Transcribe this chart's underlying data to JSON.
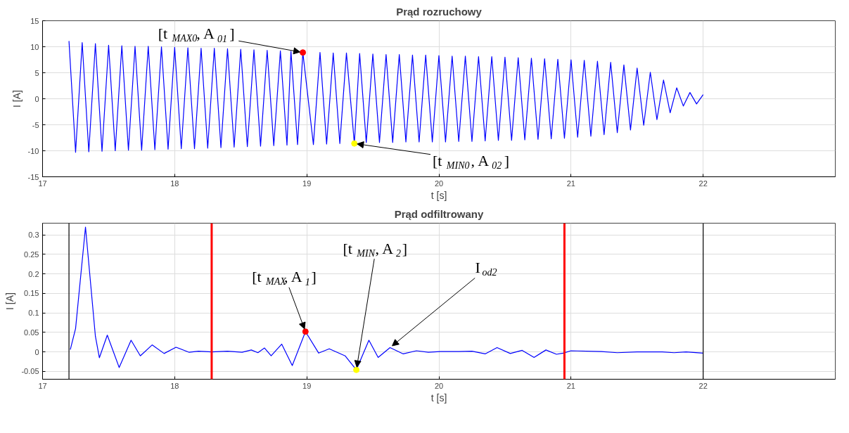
{
  "chart_data": [
    {
      "type": "line",
      "title": "Prąd rozruchowy",
      "xlabel": "t [s]",
      "ylabel": "I [A]",
      "xlim": [
        17,
        23
      ],
      "xticks": [
        17,
        18,
        19,
        20,
        21,
        22
      ],
      "ylim": [
        -15,
        15
      ],
      "yticks": [
        -15,
        -10,
        -5,
        0,
        5,
        10,
        15
      ],
      "grid": true,
      "series": [
        {
          "color": "#0000ff",
          "x": [
            17.2,
            17.25,
            17.3,
            17.35,
            17.4,
            17.45,
            17.5,
            17.55,
            17.6,
            17.65,
            17.7,
            17.75,
            17.8,
            17.85,
            17.9,
            17.95,
            18.0,
            18.05,
            18.1,
            18.15,
            18.2,
            18.25,
            18.3,
            18.35,
            18.4,
            18.45,
            18.5,
            18.55,
            18.6,
            18.65,
            18.7,
            18.75,
            18.8,
            18.85,
            18.88,
            18.93,
            18.97,
            19.05,
            19.1,
            19.15,
            19.2,
            19.25,
            19.3,
            19.36,
            19.4,
            19.45,
            19.5,
            19.55,
            19.6,
            19.65,
            19.7,
            19.75,
            19.8,
            19.85,
            19.9,
            19.95,
            20.0,
            20.05,
            20.1,
            20.15,
            20.2,
            20.25,
            20.3,
            20.35,
            20.4,
            20.45,
            20.5,
            20.55,
            20.6,
            20.65,
            20.7,
            20.75,
            20.8,
            20.85,
            20.9,
            20.95,
            21.0,
            21.05,
            21.1,
            21.15,
            21.2,
            21.25,
            21.3,
            21.35,
            21.4,
            21.45,
            21.5,
            21.55,
            21.6,
            21.65,
            21.7,
            21.75,
            21.8,
            21.85,
            21.9,
            21.95,
            22.0
          ],
          "values": [
            11.1,
            -10.3,
            10.8,
            -10.2,
            10.6,
            -10.1,
            10.3,
            -10.0,
            10.2,
            -9.9,
            10.1,
            -9.9,
            10.1,
            -9.8,
            10.0,
            -9.7,
            9.9,
            -9.6,
            9.8,
            -9.6,
            9.7,
            -9.5,
            9.7,
            -9.4,
            9.6,
            -9.3,
            9.5,
            -9.2,
            9.4,
            -9.1,
            9.3,
            -9.0,
            9.2,
            -8.9,
            9.1,
            -8.8,
            8.9,
            -8.8,
            8.9,
            -8.7,
            8.8,
            -8.6,
            8.8,
            -8.6,
            8.7,
            -8.4,
            8.6,
            -8.4,
            8.5,
            -8.4,
            8.5,
            -8.3,
            8.4,
            -8.3,
            8.4,
            -8.3,
            8.3,
            -8.3,
            8.2,
            -8.2,
            8.2,
            -8.2,
            8.1,
            -8.1,
            8.1,
            -8.0,
            8.0,
            -8.0,
            7.9,
            -7.9,
            7.8,
            -7.8,
            7.7,
            -7.7,
            7.6,
            -7.6,
            7.5,
            -7.4,
            7.4,
            -7.2,
            7.2,
            -6.9,
            7.0,
            -6.5,
            6.5,
            -6.0,
            5.9,
            -5.1,
            5.1,
            -4.0,
            3.6,
            -2.7,
            2.1,
            -1.4,
            1.2,
            -1.0,
            0.8
          ]
        },
        {
          "type": "scatter",
          "marker": "circle",
          "color": "#ff0000",
          "x": [
            18.97
          ],
          "values": [
            8.9
          ]
        },
        {
          "type": "scatter",
          "marker": "circle",
          "color": "#ffff00",
          "x": [
            19.36
          ],
          "values": [
            -8.6
          ]
        }
      ],
      "annotations": [
        {
          "text": "[t$_{MAX0}$, A$_{01}$]",
          "x": 18.97,
          "y": 8.9
        },
        {
          "text": "[t$_{MIN0}$, A$_{02}$]",
          "x": 19.36,
          "y": -8.6
        }
      ]
    },
    {
      "type": "line",
      "title": "Prąd odfiltrowany",
      "xlabel": "t [s]",
      "ylabel": "I [A]",
      "xlim": [
        17,
        23
      ],
      "xticks": [
        17,
        18,
        19,
        20,
        21,
        22
      ],
      "ylim": [
        -0.07,
        0.33
      ],
      "yticks": [
        -0.05,
        0,
        0.05,
        0.1,
        0.15,
        0.2,
        0.25,
        0.3
      ],
      "grid": true,
      "series": [
        {
          "color": "#0000ff",
          "x": [
            17.21,
            17.25,
            17.325,
            17.4,
            17.43,
            17.49,
            17.58,
            17.67,
            17.74,
            17.83,
            17.92,
            18.01,
            18.11,
            18.18,
            18.28,
            18.4,
            18.51,
            18.58,
            18.63,
            18.68,
            18.73,
            18.81,
            18.89,
            18.99,
            19.09,
            19.17,
            19.29,
            19.375,
            19.47,
            19.54,
            19.63,
            19.73,
            19.83,
            19.92,
            20.01,
            20.15,
            20.25,
            20.35,
            20.44,
            20.54,
            20.63,
            20.72,
            20.81,
            20.89,
            20.94,
            21.0,
            21.23,
            21.35,
            21.5,
            21.69,
            21.78,
            21.87,
            22.0
          ],
          "values": [
            0.006,
            0.06,
            0.32,
            0.04,
            -0.015,
            0.043,
            -0.04,
            0.03,
            -0.01,
            0.018,
            -0.004,
            0.012,
            -0.001,
            0.002,
            0,
            0.002,
            -0.001,
            0.005,
            -0.002,
            0.01,
            -0.01,
            0.02,
            -0.035,
            0.052,
            -0.003,
            0.008,
            -0.01,
            -0.046,
            0.03,
            -0.014,
            0.011,
            -0.005,
            0.003,
            -0.001,
            0.001,
            0.001,
            0.002,
            -0.005,
            0.011,
            -0.004,
            0.004,
            -0.014,
            0.005,
            -0.006,
            -0.003,
            0.003,
            0.001,
            -0.002,
            0,
            0,
            -0.002,
            0,
            -0.003
          ]
        },
        {
          "type": "scatter",
          "marker": "circle",
          "color": "#ff0000",
          "x": [
            18.99
          ],
          "values": [
            0.052
          ]
        },
        {
          "type": "scatter",
          "marker": "circle",
          "color": "#ffff00",
          "x": [
            19.375
          ],
          "values": [
            -0.046
          ]
        }
      ],
      "ref_lines": [
        {
          "axis": "x",
          "value": 17.2,
          "color": "#000000"
        },
        {
          "axis": "x",
          "value": 18.28,
          "color": "#ff0000"
        },
        {
          "axis": "x",
          "value": 20.95,
          "color": "#ff0000"
        },
        {
          "axis": "x",
          "value": 22.0,
          "color": "#000000"
        }
      ],
      "annotations": [
        {
          "text": "[t$_{MAX}$, A$_{1}$]",
          "x": 18.99,
          "y": 0.052
        },
        {
          "text": "[t$_{MIN}$, A$_{2}$]",
          "x": 19.375,
          "y": -0.046
        },
        {
          "text": "I$_{od2}$",
          "x": 19.63,
          "y": 0.011
        }
      ]
    }
  ]
}
